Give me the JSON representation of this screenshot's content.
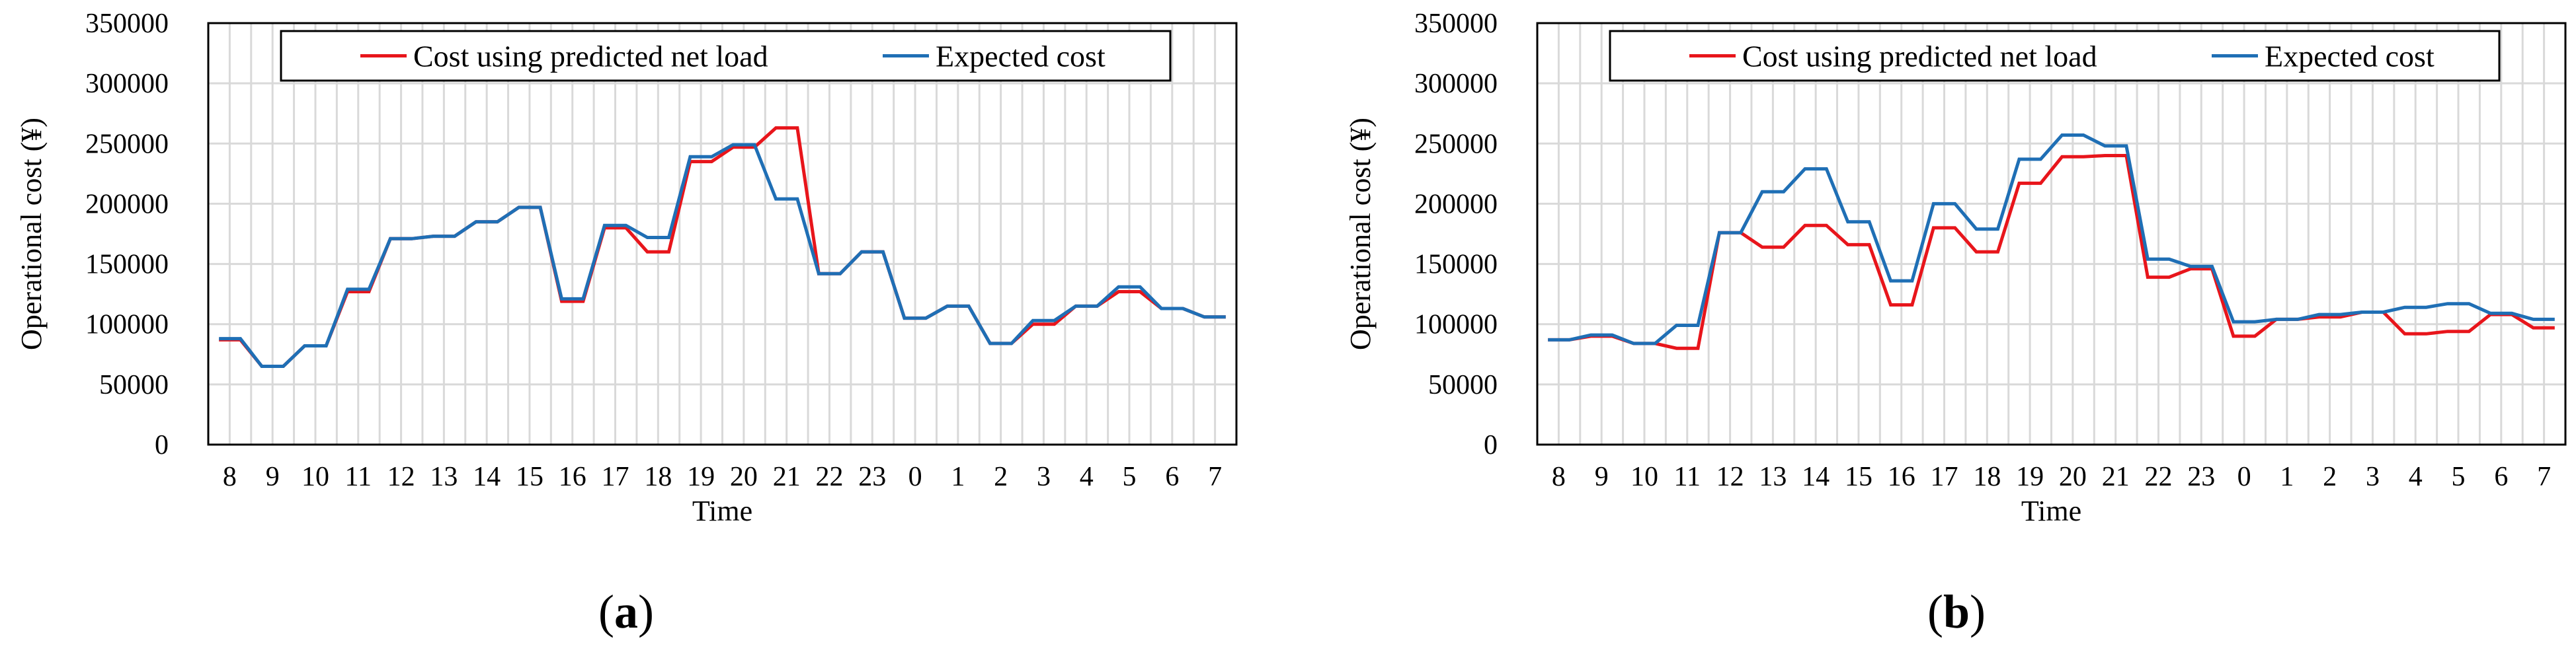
{
  "colors": {
    "predicted": "#e8151b",
    "expected": "#1f6fb5",
    "grid": "#d9d9d9",
    "axis": "#000000"
  },
  "chart_data": [
    {
      "type": "line",
      "panel_label": "a",
      "xlabel": "Time",
      "ylabel": "Operational cost (¥)",
      "ylim": [
        0,
        350000
      ],
      "yticks": [
        0,
        50000,
        100000,
        150000,
        200000,
        250000,
        300000,
        350000
      ],
      "xticklabels": [
        "8",
        "9",
        "10",
        "11",
        "12",
        "13",
        "14",
        "15",
        "16",
        "17",
        "18",
        "19",
        "20",
        "21",
        "22",
        "23",
        "0",
        "1",
        "2",
        "3",
        "4",
        "5",
        "6",
        "7"
      ],
      "grid": true,
      "legend": "top",
      "series": [
        {
          "name": "Cost using predicted net load",
          "color_key": "predicted",
          "values": [
            87000,
            87000,
            65000,
            65000,
            82000,
            82000,
            127000,
            127000,
            171000,
            171000,
            173000,
            173000,
            185000,
            185000,
            197000,
            197000,
            119000,
            119000,
            180000,
            180000,
            160000,
            160000,
            235000,
            235000,
            247000,
            247000,
            263000,
            263000,
            142000,
            142000,
            160000,
            160000,
            105000,
            105000,
            115000,
            115000,
            84000,
            84000,
            100000,
            100000,
            115000,
            115000,
            127000,
            127000,
            113000,
            113000,
            106000,
            106000
          ]
        },
        {
          "name": "Expected cost",
          "color_key": "expected",
          "values": [
            88000,
            88000,
            65000,
            65000,
            82000,
            82000,
            129000,
            129000,
            171000,
            171000,
            173000,
            173000,
            185000,
            185000,
            197000,
            197000,
            121000,
            121000,
            182000,
            182000,
            172000,
            172000,
            239000,
            239000,
            249000,
            249000,
            204000,
            204000,
            142000,
            142000,
            160000,
            160000,
            105000,
            105000,
            115000,
            115000,
            84000,
            84000,
            103000,
            103000,
            115000,
            115000,
            131000,
            131000,
            113000,
            113000,
            106000,
            106000
          ]
        }
      ]
    },
    {
      "type": "line",
      "panel_label": "b",
      "xlabel": "Time",
      "ylabel": "Operational cost (¥)",
      "ylim": [
        0,
        350000
      ],
      "yticks": [
        0,
        50000,
        100000,
        150000,
        200000,
        250000,
        300000,
        350000
      ],
      "xticklabels": [
        "8",
        "9",
        "10",
        "11",
        "12",
        "13",
        "14",
        "15",
        "16",
        "17",
        "18",
        "19",
        "20",
        "21",
        "22",
        "23",
        "0",
        "1",
        "2",
        "3",
        "4",
        "5",
        "6",
        "7"
      ],
      "grid": true,
      "legend": "top",
      "series": [
        {
          "name": "Cost using predicted net load",
          "color_key": "predicted",
          "values": [
            87000,
            87000,
            90000,
            90000,
            84000,
            84000,
            80000,
            80000,
            176000,
            176000,
            164000,
            164000,
            182000,
            182000,
            166000,
            166000,
            116000,
            116000,
            180000,
            180000,
            160000,
            160000,
            217000,
            217000,
            239000,
            239000,
            240000,
            240000,
            139000,
            139000,
            146000,
            146000,
            90000,
            90000,
            104000,
            104000,
            106000,
            106000,
            110000,
            110000,
            92000,
            92000,
            94000,
            94000,
            108000,
            108000,
            97000,
            97000
          ]
        },
        {
          "name": "Expected cost",
          "color_key": "expected",
          "values": [
            87000,
            87000,
            91000,
            91000,
            84000,
            84000,
            99000,
            99000,
            176000,
            176000,
            210000,
            210000,
            229000,
            229000,
            185000,
            185000,
            136000,
            136000,
            200000,
            200000,
            179000,
            179000,
            237000,
            237000,
            257000,
            257000,
            248000,
            248000,
            154000,
            154000,
            148000,
            148000,
            102000,
            102000,
            104000,
            104000,
            108000,
            108000,
            110000,
            110000,
            114000,
            114000,
            117000,
            117000,
            109000,
            109000,
            104000,
            104000
          ]
        }
      ]
    }
  ]
}
